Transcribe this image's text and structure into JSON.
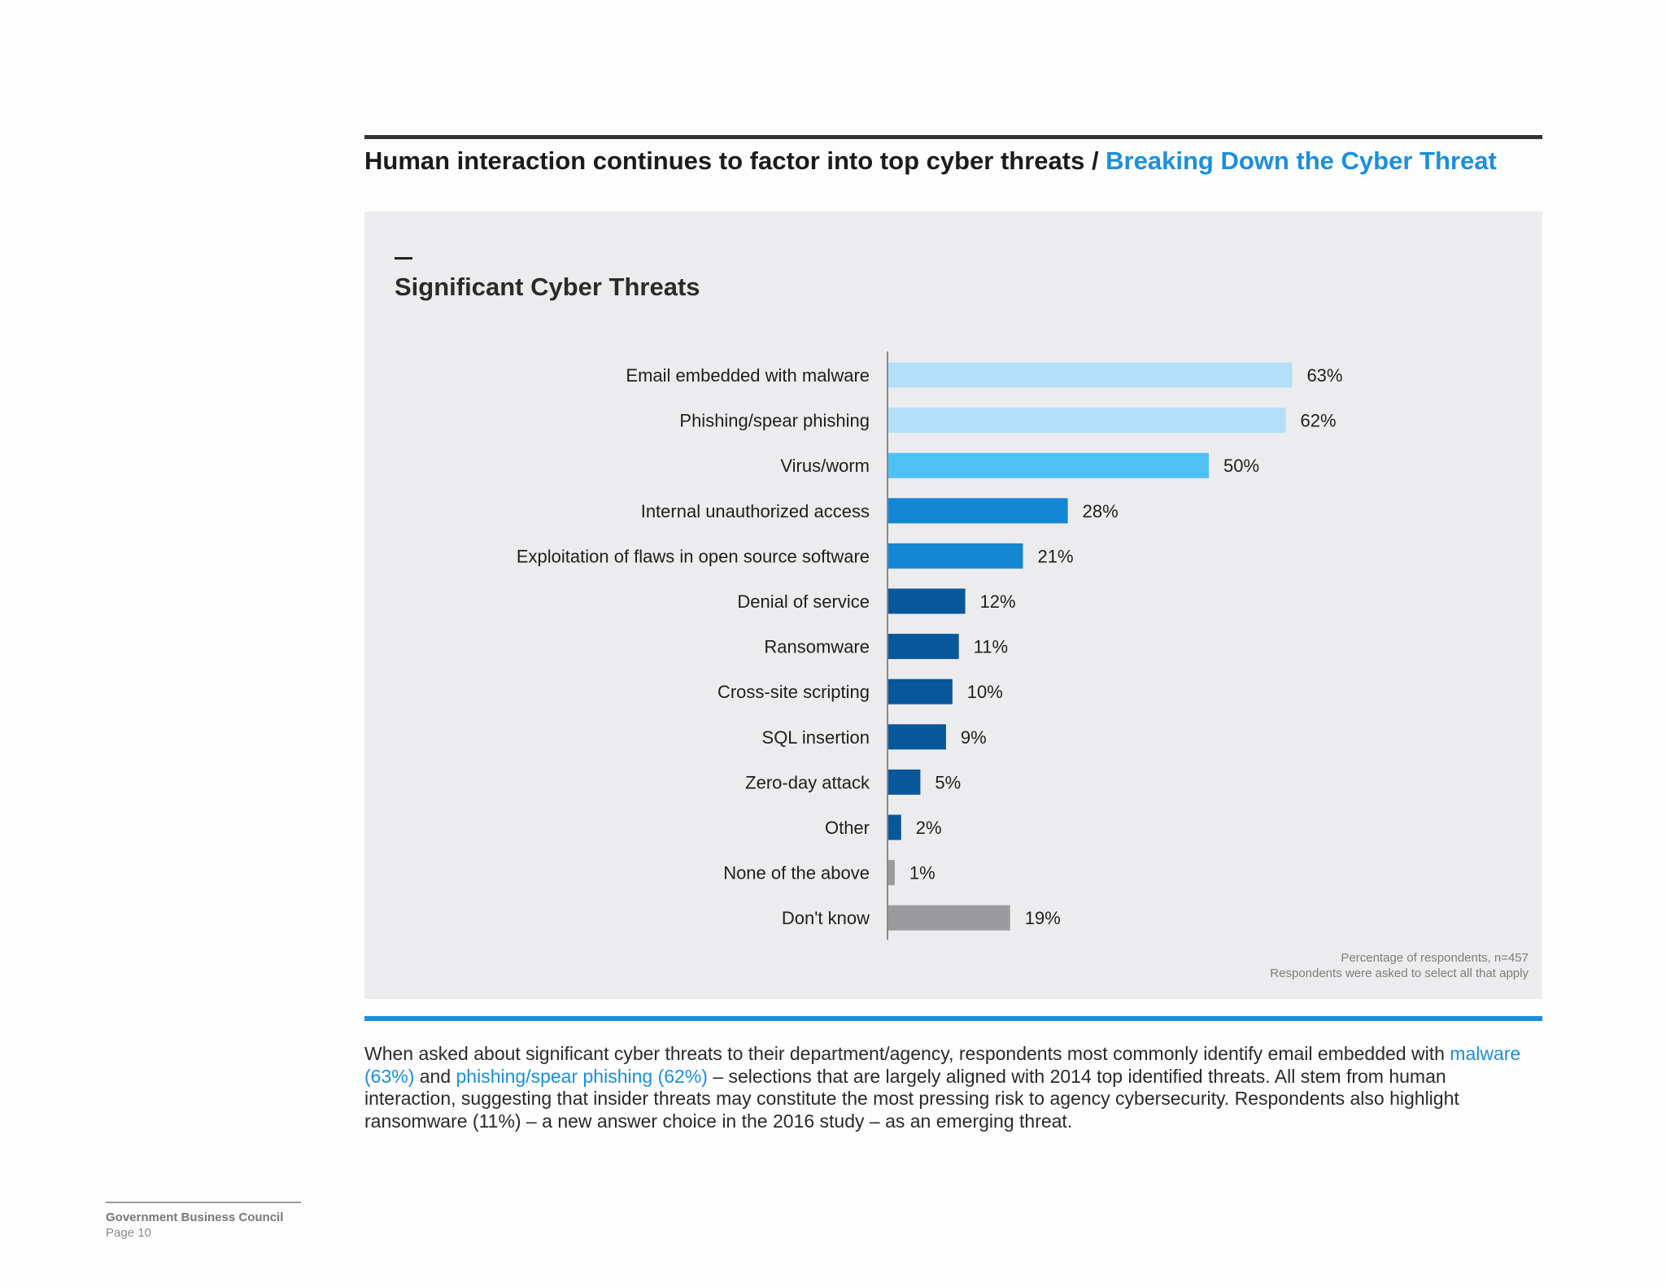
{
  "header": {
    "title": "Human interaction continues to factor into top cyber threats",
    "separator": " / ",
    "section": "Breaking Down the Cyber Threat"
  },
  "panel": {
    "title": "Significant Cyber Threats",
    "footnote_1": "Percentage of respondents, n=457",
    "footnote_2": "Respondents were asked to select all that apply"
  },
  "chart_data": {
    "type": "bar",
    "orientation": "horizontal",
    "title": "Significant Cyber Threats",
    "unit": "%",
    "categories": [
      "Email embedded with malware",
      "Phishing/spear phishing",
      "Virus/worm",
      "Internal unauthorized access",
      "Exploitation of flaws in open source software",
      "Denial of service",
      "Ransomware",
      "Cross-site scripting",
      "SQL insertion",
      "Zero-day attack",
      "Other",
      "None of the above",
      "Don't know"
    ],
    "values": [
      63,
      62,
      50,
      28,
      21,
      12,
      11,
      10,
      9,
      5,
      2,
      1,
      19
    ],
    "value_labels": [
      "63%",
      "62%",
      "50%",
      "28%",
      "21%",
      "12%",
      "11%",
      "10%",
      "9%",
      "5%",
      "2%",
      "1%",
      "19%"
    ],
    "colors": [
      "#b3e0f8",
      "#b3e0f8",
      "#4fc0f4",
      "#1487d4",
      "#1487d4",
      "#07579a",
      "#07579a",
      "#07579a",
      "#07579a",
      "#07579a",
      "#07579a",
      "#9b9b9d",
      "#9b9b9d"
    ],
    "xlim": [
      0,
      100
    ],
    "grid": false
  },
  "body": {
    "part1": "When asked about significant cyber threats to their department/agency, respondents most commonly identify email embedded with ",
    "hl1": "malware (63%)",
    "part2": " and ",
    "hl2": "phishing/spear phishing (62%)",
    "part3": " – selections that are largely aligned with 2014 top identified threats. All stem from human interaction, suggesting that insider threats may constitute the most pressing risk to agency cybersecurity. Respondents also highlight ransomware (11%) – a new answer choice in the 2016 study – as an emerging threat."
  },
  "footer": {
    "org": "Government Business Council",
    "page": "Page 10"
  }
}
